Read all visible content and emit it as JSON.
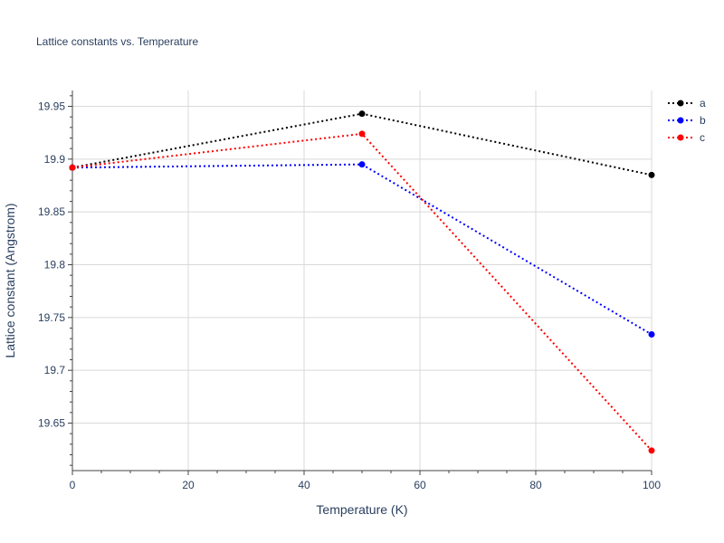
{
  "chart_data": {
    "type": "line",
    "title": "Lattice constants vs. Temperature",
    "xlabel": "Temperature (K)",
    "ylabel": "Lattice constant (Angstrom)",
    "xlim": [
      0,
      100
    ],
    "ylim": [
      19.605,
      19.965
    ],
    "xticks": [
      0,
      20,
      40,
      60,
      80,
      100
    ],
    "xtick_labels": [
      "0",
      "20",
      "40",
      "60",
      "80",
      "100"
    ],
    "yticks": [
      19.65,
      19.7,
      19.75,
      19.8,
      19.85,
      19.9,
      19.95
    ],
    "ytick_labels": [
      "19.65",
      "19.7",
      "19.75",
      "19.8",
      "19.85",
      "19.9",
      "19.95"
    ],
    "grid": true,
    "legend_position": "top-right",
    "line_style": "dotted",
    "x": [
      0,
      50,
      100
    ],
    "series": [
      {
        "name": "a",
        "color": "#000000",
        "values": [
          19.892,
          19.943,
          19.885
        ]
      },
      {
        "name": "b",
        "color": "#0000ff",
        "values": [
          19.892,
          19.895,
          19.734
        ]
      },
      {
        "name": "c",
        "color": "#ff0000",
        "values": [
          19.892,
          19.924,
          19.624
        ]
      }
    ]
  }
}
